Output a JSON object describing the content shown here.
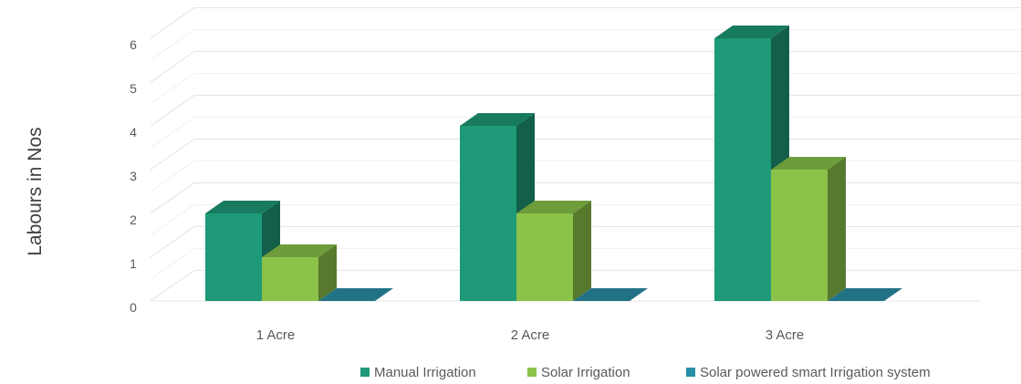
{
  "chart_data": {
    "type": "bar",
    "title": "",
    "xlabel": "",
    "ylabel": "Labours in Nos",
    "categories": [
      "1 Acre",
      "2 Acre",
      "3 Acre"
    ],
    "series": [
      {
        "name": "Manual Irrigation",
        "values": [
          2,
          4,
          6
        ],
        "color": "#1e9a78"
      },
      {
        "name": "Solar Irrigation",
        "values": [
          1,
          2,
          3
        ],
        "color": "#8bc34a"
      },
      {
        "name": "Solar powered smart Irrigation system",
        "values": [
          0,
          0,
          0
        ],
        "color": "#2a8fa8"
      }
    ],
    "ylim": [
      0,
      6
    ],
    "yticks": [
      0,
      1,
      2,
      3,
      4,
      5,
      6
    ],
    "grid": true,
    "three_d": true,
    "legend_position": "bottom"
  }
}
